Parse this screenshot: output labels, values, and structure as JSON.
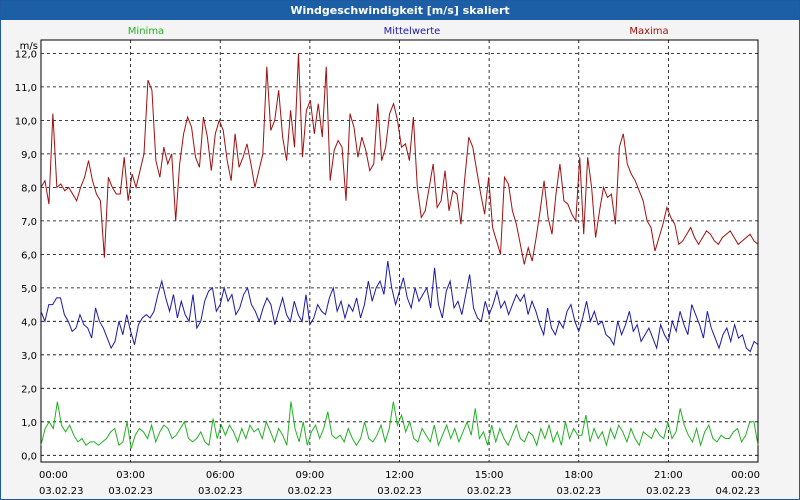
{
  "window": {
    "title": "Windgeschwindigkeit [m/s] skaliert"
  },
  "chart_data": {
    "type": "line",
    "title": "Windgeschwindigkeit [m/s] skaliert",
    "ylabel": "m/s",
    "ylim": [
      -0.2,
      12.4
    ],
    "yticks": [
      0,
      1,
      2,
      3,
      4,
      5,
      6,
      7,
      8,
      9,
      10,
      11,
      12
    ],
    "ytick_labels": [
      "0,0",
      "1,0",
      "2,0",
      "3,0",
      "4,0",
      "5,0",
      "6,0",
      "7,0",
      "8,0",
      "9,0",
      "10,0",
      "11,0",
      "12,0"
    ],
    "xlim": [
      0,
      24
    ],
    "xticks": [
      0,
      3,
      6,
      9,
      12,
      15,
      18,
      21,
      24
    ],
    "xtick_time_labels": [
      "00:00",
      "03:00",
      "06:00",
      "09:00",
      "12:00",
      "15:00",
      "18:00",
      "21:00",
      "00:00"
    ],
    "xtick_date_labels": [
      "03.02.23",
      "03.02.23",
      "03.02.23",
      "03.02.23",
      "03.02.23",
      "03.02.23",
      "03.02.23",
      "03.02.23",
      "04.02.23"
    ],
    "grid": true,
    "colors": {
      "minima": "#22b022",
      "mittelwerte": "#1a1aa8",
      "maxima": "#a01010"
    },
    "series": [
      {
        "name": "Minima",
        "values": [
          0.3,
          0.8,
          1.0,
          0.8,
          1.6,
          0.9,
          0.7,
          0.9,
          0.6,
          0.4,
          0.5,
          0.3,
          0.4,
          0.4,
          0.3,
          0.4,
          0.5,
          0.7,
          0.8,
          0.3,
          0.4,
          1.0,
          0.2,
          0.6,
          0.8,
          0.7,
          0.5,
          0.9,
          0.4,
          0.7,
          0.9,
          0.8,
          0.5,
          0.6,
          0.8,
          1.0,
          0.5,
          0.4,
          0.5,
          0.7,
          0.4,
          0.3,
          1.1,
          0.5,
          0.9,
          0.6,
          0.9,
          0.7,
          0.4,
          0.8,
          0.5,
          0.9,
          0.7,
          0.8,
          0.5,
          1.0,
          0.7,
          0.4,
          0.8,
          0.6,
          0.3,
          1.6,
          0.8,
          0.4,
          1.0,
          0.3,
          0.7,
          0.9,
          0.5,
          0.8,
          1.3,
          0.6,
          0.5,
          0.6,
          0.4,
          0.8,
          0.5,
          0.3,
          0.5,
          1.0,
          0.5,
          0.4,
          0.6,
          0.9,
          0.4,
          0.8,
          1.6,
          0.9,
          1.2,
          0.7,
          1.0,
          0.5,
          0.4,
          0.8,
          0.6,
          0.4,
          0.9,
          0.3,
          0.6,
          0.9,
          0.5,
          0.8,
          0.4,
          0.7,
          1.0,
          0.6,
          1.4,
          0.5,
          0.7,
          0.3,
          0.9,
          0.4,
          0.8,
          0.5,
          0.3,
          0.6,
          0.9,
          0.5,
          0.4,
          0.7,
          0.6,
          0.3,
          0.8,
          0.5,
          0.9,
          0.4,
          0.7,
          0.3,
          1.0,
          0.5,
          0.8,
          0.6,
          0.6,
          1.2,
          0.4,
          0.8,
          0.5,
          0.7,
          0.3,
          0.8,
          0.5,
          0.9,
          0.7,
          0.4,
          0.8,
          0.5,
          0.3,
          0.7,
          0.6,
          0.5,
          0.8,
          0.6,
          0.5,
          1.0,
          0.5,
          0.7,
          1.4,
          0.9,
          0.6,
          0.4,
          0.8,
          0.3,
          0.7,
          0.9,
          0.5,
          0.4,
          0.6,
          0.5,
          0.5,
          0.7,
          0.8,
          0.4,
          0.6,
          1.0,
          1.0,
          0.3
        ]
      },
      {
        "name": "Mittelwerte",
        "values": [
          4.3,
          4.0,
          4.5,
          4.5,
          4.7,
          4.7,
          4.2,
          4.0,
          3.7,
          3.8,
          4.2,
          3.9,
          3.8,
          3.5,
          4.4,
          4.0,
          3.8,
          3.5,
          3.2,
          3.4,
          4.0,
          3.6,
          4.2,
          3.7,
          3.3,
          3.9,
          4.1,
          4.2,
          4.1,
          4.3,
          4.8,
          5.2,
          4.7,
          4.3,
          4.8,
          4.1,
          4.6,
          4.2,
          4.0,
          4.8,
          3.8,
          4.0,
          4.6,
          4.9,
          5.0,
          4.3,
          4.5,
          5.0,
          4.6,
          4.8,
          4.2,
          4.4,
          4.8,
          5.0,
          4.5,
          4.3,
          4.0,
          4.4,
          4.7,
          4.5,
          3.9,
          4.3,
          4.7,
          4.2,
          4.0,
          4.6,
          4.2,
          4.0,
          4.8,
          3.9,
          4.1,
          4.5,
          4.3,
          4.2,
          4.7,
          5.0,
          4.3,
          4.6,
          4.1,
          4.5,
          4.3,
          4.7,
          4.1,
          4.5,
          5.2,
          4.6,
          5.0,
          5.2,
          4.8,
          5.8,
          5.0,
          4.5,
          4.9,
          5.3,
          4.7,
          4.4,
          5.0,
          4.6,
          4.8,
          5.0,
          4.4,
          5.6,
          4.5,
          4.1,
          4.9,
          5.2,
          4.4,
          4.6,
          4.2,
          4.8,
          5.4,
          4.4,
          4.1,
          4.0,
          4.6,
          4.2,
          4.5,
          4.9,
          4.4,
          4.6,
          4.2,
          4.5,
          4.8,
          4.6,
          4.8,
          4.2,
          4.6,
          4.3,
          3.9,
          3.6,
          4.4,
          3.8,
          3.6,
          4.0,
          3.8,
          4.3,
          4.5,
          4.0,
          3.7,
          4.1,
          4.6,
          4.0,
          4.3,
          3.9,
          4.0,
          3.6,
          3.5,
          3.3,
          4.0,
          3.6,
          3.9,
          4.3,
          3.7,
          3.9,
          3.4,
          3.6,
          3.8,
          3.5,
          3.2,
          3.9,
          3.6,
          3.4,
          4.0,
          3.7,
          4.3,
          3.9,
          3.6,
          4.5,
          4.2,
          3.9,
          3.5,
          4.3,
          3.8,
          3.5,
          3.2,
          3.6,
          3.8,
          3.4,
          3.9,
          3.5,
          3.6,
          3.2,
          3.1,
          3.4,
          3.3
        ]
      },
      {
        "name": "Maxima",
        "values": [
          8.0,
          8.2,
          7.5,
          10.2,
          8.0,
          8.1,
          7.9,
          8.0,
          7.8,
          7.6,
          8.0,
          8.3,
          8.8,
          8.2,
          7.8,
          7.6,
          5.9,
          8.3,
          8.0,
          7.8,
          7.8,
          8.9,
          7.6,
          8.4,
          8.0,
          8.5,
          9.0,
          11.2,
          10.9,
          8.8,
          8.3,
          9.2,
          8.7,
          9.0,
          7.0,
          8.7,
          9.6,
          10.1,
          9.8,
          8.9,
          8.6,
          10.1,
          9.5,
          8.5,
          9.6,
          10.0,
          9.7,
          8.8,
          8.2,
          9.6,
          8.6,
          8.9,
          9.3,
          8.7,
          8.0,
          8.5,
          9.0,
          11.6,
          9.7,
          10.0,
          10.9,
          9.5,
          8.8,
          10.3,
          9.2,
          12.0,
          8.9,
          10.3,
          10.6,
          9.6,
          10.5,
          9.5,
          11.6,
          8.2,
          9.1,
          9.4,
          9.2,
          7.6,
          10.2,
          9.8,
          8.9,
          9.5,
          9.1,
          8.5,
          8.7,
          10.5,
          8.8,
          9.2,
          10.2,
          10.5,
          10.0,
          9.2,
          9.3,
          8.8,
          10.1,
          8.0,
          7.1,
          7.3,
          8.0,
          8.7,
          7.4,
          7.6,
          8.5,
          7.3,
          7.9,
          7.8,
          6.9,
          8.3,
          9.5,
          9.2,
          8.5,
          7.8,
          7.2,
          8.3,
          6.8,
          6.4,
          6.0,
          8.3,
          8.1,
          7.3,
          6.9,
          6.3,
          5.7,
          6.2,
          5.8,
          6.5,
          7.3,
          8.2,
          7.1,
          6.6,
          7.8,
          8.7,
          7.6,
          7.5,
          7.2,
          7.0,
          8.9,
          6.6,
          8.9,
          8.0,
          6.5,
          7.3,
          8.0,
          7.7,
          7.8,
          6.9,
          9.2,
          9.6,
          8.7,
          8.4,
          8.2,
          7.9,
          7.6,
          7.0,
          6.8,
          6.1,
          6.5,
          6.9,
          7.4,
          7.1,
          6.9,
          6.3,
          6.4,
          6.6,
          6.8,
          6.5,
          6.3,
          6.5,
          6.7,
          6.6,
          6.4,
          6.3,
          6.5,
          6.6,
          6.7,
          6.5,
          6.3,
          6.4,
          6.5,
          6.6,
          6.4,
          6.3
        ]
      }
    ]
  }
}
